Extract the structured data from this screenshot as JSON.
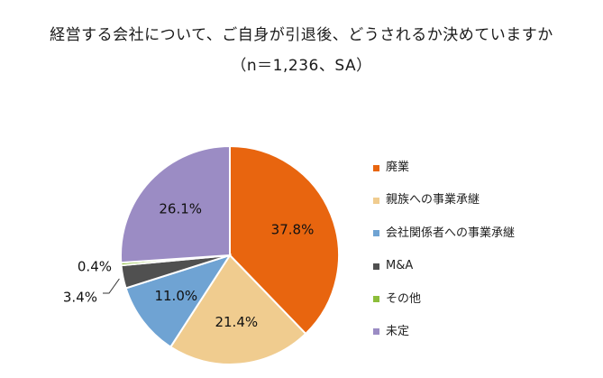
{
  "chart_data": {
    "type": "pie",
    "title": "経営する会社について、ご自身が引退後、どうされるか決めていますか",
    "subtitle": "（n＝1,236、SA）",
    "series": [
      {
        "name": "廃業",
        "value": 37.8,
        "label": "37.8%",
        "color": "#e8650f"
      },
      {
        "name": "親族への事業承継",
        "value": 21.4,
        "label": "21.4%",
        "color": "#f0cc8f"
      },
      {
        "name": "会社関係者への事業承継",
        "value": 11.0,
        "label": "11.0%",
        "color": "#6fa3d3"
      },
      {
        "name": "M&A",
        "value": 3.4,
        "label": "3.4%",
        "color": "#505050"
      },
      {
        "name": "その他",
        "value": 0.4,
        "label": "0.4%",
        "color": "#8cbd3a"
      },
      {
        "name": "未定",
        "value": 26.1,
        "label": "26.1%",
        "color": "#9b8cc4"
      }
    ],
    "legend_position": "right"
  }
}
